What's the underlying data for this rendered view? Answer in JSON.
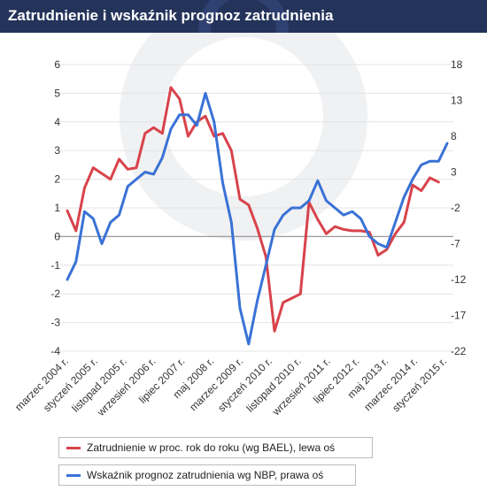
{
  "title": "Zatrudnienie i wskaźnik prognoz zatrudnienia",
  "colors": {
    "series_employment": "#d8434b",
    "series_forecast": "#3a72d6",
    "title_bg": "#24335a",
    "grid": "#e4e4e4"
  },
  "chart_data": {
    "type": "line",
    "title": "Zatrudnienie i wskaźnik prognoz zatrudnienia",
    "x_tick_labels": [
      "marzec 2004 r.",
      "styczeń 2005 r.",
      "listopad 2005 r.",
      "wrzesień 2006 r.",
      "lipiec 2007 r.",
      "maj 2008 r.",
      "marzec 2009 r.",
      "styczeń 2010 r.",
      "listopad 2010 r.",
      "wrzesień 2011 r.",
      "lipiec 2012 r.",
      "maj 2013 r.",
      "marzec 2014 r.",
      "styczeń 2015 r."
    ],
    "y_left": {
      "ticks": [
        "6",
        "5",
        "4",
        "3",
        "2",
        "1",
        "0",
        "-1",
        "-2",
        "-3",
        "-4"
      ],
      "range": [
        -4,
        6
      ]
    },
    "y_right": {
      "ticks": [
        "18",
        "13",
        "8",
        "3",
        "-2",
        "-7",
        "-12",
        "-17",
        "-22"
      ],
      "range": [
        -22,
        18
      ]
    },
    "x": [
      2004.25,
      2004.5,
      2004.75,
      2005.0,
      2005.25,
      2005.5,
      2005.75,
      2006.0,
      2006.25,
      2006.5,
      2006.75,
      2007.0,
      2007.25,
      2007.5,
      2007.75,
      2008.0,
      2008.25,
      2008.5,
      2008.75,
      2009.0,
      2009.25,
      2009.5,
      2009.75,
      2010.0,
      2010.25,
      2010.5,
      2010.75,
      2011.0,
      2011.25,
      2011.5,
      2011.75,
      2012.0,
      2012.25,
      2012.5,
      2012.75,
      2013.0,
      2013.25,
      2013.5,
      2013.75,
      2014.0,
      2014.25,
      2014.5,
      2014.75,
      2015.0,
      2015.25
    ],
    "series": [
      {
        "name": "Zatrudnienie w proc. rok do roku (wg BAEL), lewa oś",
        "axis": "left",
        "color": "#d8434b",
        "values": [
          0.9,
          0.2,
          1.7,
          2.4,
          2.2,
          2.0,
          2.7,
          2.35,
          2.4,
          3.6,
          3.8,
          3.6,
          5.2,
          4.8,
          3.5,
          4.0,
          4.2,
          3.5,
          3.6,
          3.0,
          1.3,
          1.1,
          0.3,
          -0.7,
          -3.3,
          -2.3,
          -2.15,
          -2.0,
          1.2,
          0.6,
          0.1,
          0.35,
          0.25,
          0.2,
          0.2,
          0.15,
          -0.65,
          -0.45,
          0.1,
          0.5,
          1.8,
          1.6,
          2.05,
          1.9,
          null
        ]
      },
      {
        "name": "Wskaźnik prognoz zatrudnienia wg NBP, prawa oś",
        "axis": "right",
        "color": "#3a72d6",
        "values": [
          -12.0,
          -9.5,
          -2.5,
          -3.5,
          -7.0,
          -4.0,
          -3.0,
          1.0,
          2.0,
          3.0,
          2.7,
          5.0,
          9.0,
          11.0,
          11.0,
          9.5,
          14.0,
          10.0,
          1.5,
          -4.0,
          -16.0,
          -21.0,
          -15.0,
          -10.0,
          -5.0,
          -3.0,
          -2.0,
          -2.0,
          -1.0,
          1.8,
          -1.0,
          -2.0,
          -3.0,
          -2.5,
          -3.5,
          -6.0,
          -7.0,
          -7.5,
          -4.0,
          -0.5,
          2.0,
          4.0,
          4.5,
          4.5,
          7.0
        ]
      }
    ]
  }
}
